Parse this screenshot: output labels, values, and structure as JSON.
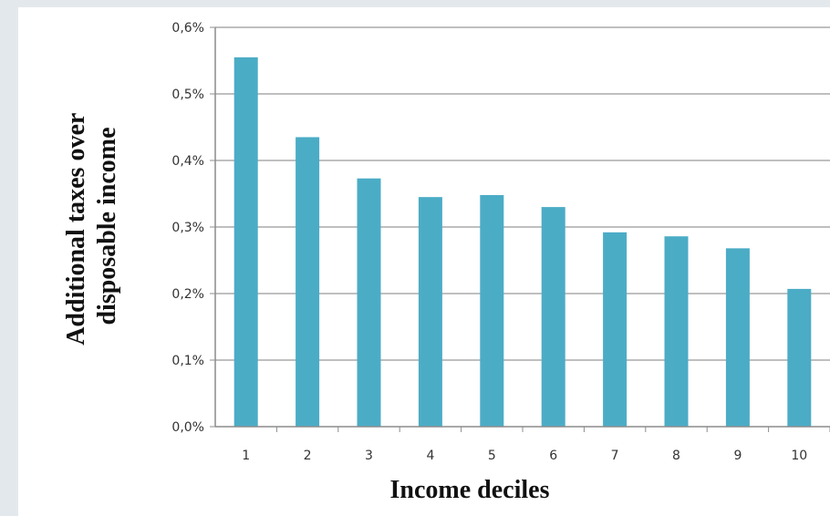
{
  "chart_data": {
    "type": "bar",
    "categories": [
      "1",
      "2",
      "3",
      "4",
      "5",
      "6",
      "7",
      "8",
      "9",
      "10"
    ],
    "values": [
      0.555,
      0.435,
      0.373,
      0.345,
      0.348,
      0.33,
      0.292,
      0.286,
      0.268,
      0.207
    ],
    "value_unit": "%",
    "xlabel": "Income deciles",
    "ylabel_lines": [
      "Additional taxes over",
      "disposable income"
    ],
    "ylim": [
      0,
      0.6
    ],
    "yticks": [
      "0,0%",
      "0,1%",
      "0,2%",
      "0,3%",
      "0,4%",
      "0,5%",
      "0,6%"
    ],
    "grid": true,
    "colors": {
      "bar": "#4bacc6",
      "grid": "#bfbfbf",
      "axis": "#8c8c8c"
    }
  }
}
